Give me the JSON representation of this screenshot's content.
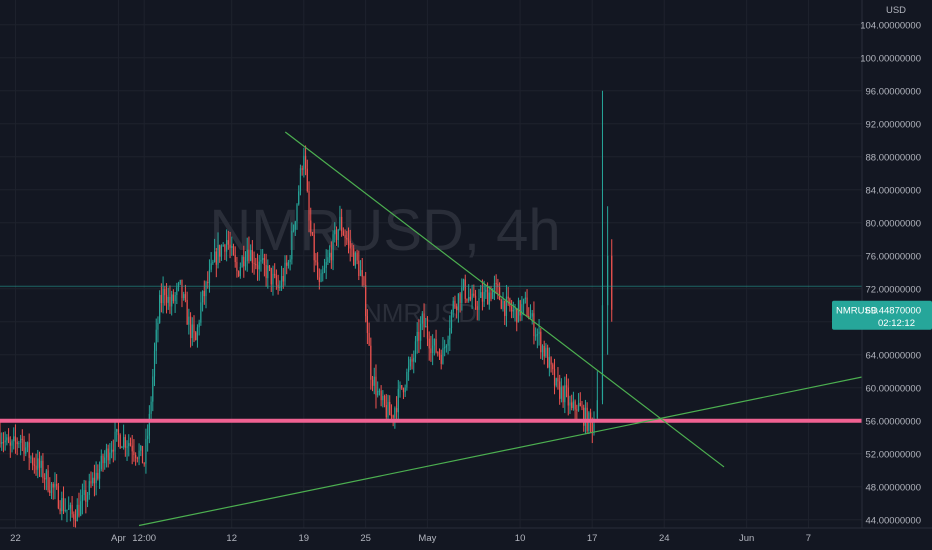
{
  "chart_data": {
    "type": "candlestick",
    "symbol_watermark": "NMRUSD, 4h",
    "watermark_sub": "NMRUSD",
    "currency_label": "USD",
    "y_axis": {
      "min": 43,
      "max": 107,
      "ticks": [
        "104.00000000",
        "100.00000000",
        "96.00000000",
        "92.00000000",
        "88.00000000",
        "84.00000000",
        "80.00000000",
        "76.00000000",
        "72.00000000",
        "68.00000000",
        "64.00000000",
        "60.00000000",
        "56.00000000",
        "52.00000000",
        "48.00000000",
        "44.00000000"
      ],
      "tick_values": [
        104,
        100,
        96,
        92,
        88,
        84,
        80,
        76,
        72,
        68,
        64,
        60,
        56,
        52,
        48,
        44
      ]
    },
    "x_axis": {
      "ticks": [
        {
          "label": "22",
          "day": -10
        },
        {
          "label": "Apr",
          "day": 0
        },
        {
          "label": "12:00",
          "day": 2.5
        },
        {
          "label": "12",
          "day": 11
        },
        {
          "label": "19",
          "day": 18
        },
        {
          "label": "25",
          "day": 24
        },
        {
          "label": "May",
          "day": 30
        },
        {
          "label": "10",
          "day": 39
        },
        {
          "label": "17",
          "day": 46
        },
        {
          "label": "24",
          "day": 53
        },
        {
          "label": "Jun",
          "day": 61
        },
        {
          "label": "7",
          "day": 67
        }
      ],
      "day_min": -11.5,
      "day_max": 72.2
    },
    "price_label": {
      "symbol": "NMRUSD",
      "price": "69.44870000",
      "countdown": "02:12:12",
      "value": 69.4487
    },
    "reference_price_line": 72.3,
    "horizontal_support": 56,
    "trendlines": [
      {
        "name": "descending",
        "x1": 16.2,
        "y1": 91,
        "x2": 58.8,
        "y2": 50.4
      },
      {
        "name": "ascending",
        "x1": 2,
        "y1": 43.3,
        "x2": 72.2,
        "y2": 61.3
      }
    ],
    "price_path": [
      [
        -11.5,
        54.5
      ],
      [
        -10.5,
        52.5
      ],
      [
        -9.5,
        54
      ],
      [
        -8.5,
        51.5
      ],
      [
        -7.5,
        50
      ],
      [
        -6.5,
        48
      ],
      [
        -5.5,
        46
      ],
      [
        -4.5,
        44.5
      ],
      [
        -3.5,
        46
      ],
      [
        -2.5,
        48.5
      ],
      [
        -1.5,
        51
      ],
      [
        -0.8,
        53
      ],
      [
        0,
        54
      ],
      [
        1,
        53.5
      ],
      [
        2,
        52
      ],
      [
        2.5,
        51
      ],
      [
        3,
        56
      ],
      [
        3.5,
        64
      ],
      [
        4,
        70
      ],
      [
        4.5,
        72
      ],
      [
        5,
        70
      ],
      [
        6,
        72
      ],
      [
        7,
        67
      ],
      [
        7.5,
        65.5
      ],
      [
        8,
        70
      ],
      [
        8.5,
        72
      ],
      [
        9.5,
        76
      ],
      [
        10.5,
        78
      ],
      [
        11.5,
        74
      ],
      [
        12.5,
        77
      ],
      [
        13.5,
        75
      ],
      [
        14.5,
        74
      ],
      [
        15.5,
        72
      ],
      [
        16.5,
        75
      ],
      [
        17.5,
        84
      ],
      [
        18,
        89
      ],
      [
        18.5,
        80
      ],
      [
        19.5,
        72
      ],
      [
        20.5,
        76
      ],
      [
        21.5,
        80
      ],
      [
        22.5,
        77
      ],
      [
        23.5,
        74
      ],
      [
        24,
        70
      ],
      [
        24.5,
        62
      ],
      [
        25,
        60
      ],
      [
        25.5,
        58
      ],
      [
        26.5,
        56.5
      ],
      [
        27.5,
        60
      ],
      [
        28.5,
        63
      ],
      [
        29.5,
        68
      ],
      [
        30.5,
        65
      ],
      [
        31.5,
        64
      ],
      [
        32.5,
        70
      ],
      [
        33.5,
        72
      ],
      [
        34.5,
        70
      ],
      [
        35.5,
        71
      ],
      [
        36.5,
        72
      ],
      [
        37.5,
        70
      ],
      [
        38.5,
        69
      ],
      [
        39.5,
        70
      ],
      [
        40.5,
        67
      ],
      [
        41.5,
        64
      ],
      [
        42.5,
        60
      ],
      [
        43.5,
        59
      ],
      [
        44,
        57
      ],
      [
        44.5,
        58
      ],
      [
        45,
        57
      ],
      [
        45.5,
        56
      ],
      [
        46,
        55.5
      ],
      [
        46.3,
        56
      ]
    ],
    "spike": [
      {
        "day": 46.5,
        "open": 56.3,
        "high": 62,
        "low": 55.8,
        "close": 58.5
      },
      {
        "day": 47.0,
        "open": 58.5,
        "high": 96,
        "low": 58,
        "close": 70
      },
      {
        "day": 47.5,
        "open": 70,
        "high": 82,
        "low": 64,
        "close": 76
      },
      {
        "day": 47.9,
        "open": 76,
        "high": 78,
        "low": 68,
        "close": 69.4487
      }
    ],
    "colors": {
      "background": "#131722",
      "up": "#26a69a",
      "down": "#ef5350",
      "trendline": "#4caf50",
      "support": "#f06292",
      "grid": "#1e222d",
      "axis_text": "#b2b5be",
      "price_badge": "#26a69a"
    }
  }
}
